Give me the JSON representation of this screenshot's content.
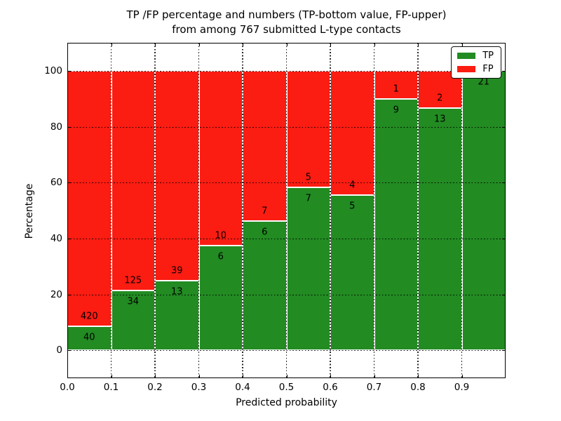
{
  "title": {
    "line1": "TP /FP percentage and numbers (TP-bottom value, FP-upper)",
    "line2": "from among 767 submitted L-type contacts"
  },
  "chart_data": {
    "type": "bar",
    "stacked": true,
    "normalized_to_percent": true,
    "title": "TP /FP percentage and numbers (TP-bottom value, FP-upper) from among 767 submitted L-type contacts",
    "xlabel": "Predicted probability",
    "ylabel": "Percentage",
    "total_contacts": 767,
    "categories": [
      "0.0-0.1",
      "0.1-0.2",
      "0.2-0.3",
      "0.3-0.4",
      "0.4-0.5",
      "0.5-0.6",
      "0.6-0.7",
      "0.7-0.8",
      "0.8-0.9",
      "0.9-1.0"
    ],
    "bin_edges": [
      0.0,
      0.1,
      0.2,
      0.3,
      0.4,
      0.5,
      0.6,
      0.7,
      0.8,
      0.9,
      1.0
    ],
    "series": [
      {
        "name": "TP",
        "color": "#228b22",
        "counts": [
          40,
          34,
          13,
          6,
          6,
          7,
          5,
          9,
          13,
          21
        ]
      },
      {
        "name": "FP",
        "color": "#fb1c12",
        "counts": [
          420,
          125,
          39,
          10,
          7,
          5,
          4,
          1,
          2,
          0
        ]
      }
    ],
    "tp_percent": [
      8.7,
      21.38,
      25.0,
      37.5,
      46.15,
      58.33,
      55.56,
      90.0,
      86.67,
      100.0
    ],
    "xticks": [
      "0.0",
      "0.1",
      "0.2",
      "0.3",
      "0.4",
      "0.5",
      "0.6",
      "0.7",
      "0.8",
      "0.9"
    ],
    "yticks": [
      0,
      20,
      40,
      60,
      80,
      100
    ],
    "xlim": [
      0.0,
      1.0
    ],
    "ylim": [
      -10,
      110
    ],
    "grid": "dotted",
    "legend": {
      "position": "upper right",
      "entries": [
        {
          "label": "TP",
          "color": "#228b22"
        },
        {
          "label": "FP",
          "color": "#fb1c12"
        }
      ]
    }
  }
}
